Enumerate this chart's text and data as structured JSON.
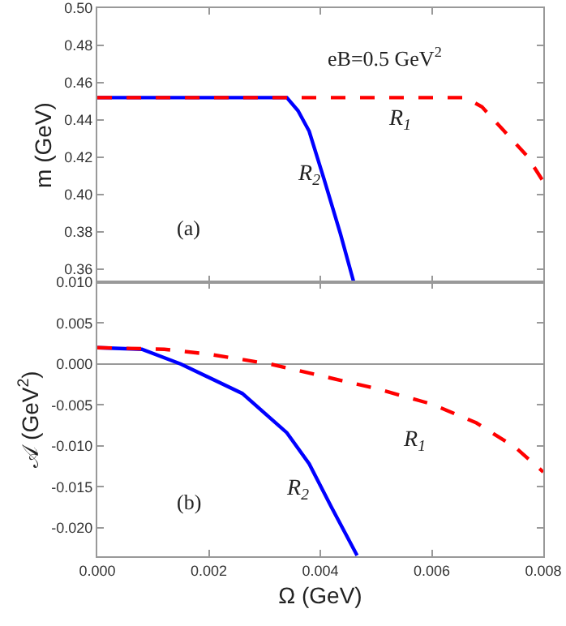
{
  "chart_data": [
    {
      "type": "line",
      "ylabel": "m (GeV)",
      "xlim": [
        0,
        0.008
      ],
      "ylim": [
        0.353,
        0.5
      ],
      "tick_labels": "y",
      "xticks": [
        {
          "value": 0,
          "label": null
        },
        {
          "value": 0.002,
          "label": null
        },
        {
          "value": 0.004,
          "label": null
        },
        {
          "value": 0.006,
          "label": null
        },
        {
          "value": 0.008,
          "label": null
        }
      ],
      "yticks": [
        0.36,
        0.38,
        {
          "value": 0.4,
          "label": "0.40"
        },
        0.42,
        0.44,
        0.46,
        0.48,
        {
          "value": 0.5,
          "label": "0.50"
        }
      ],
      "series": [
        {
          "name": "R$_{2}$",
          "color": "#0000ff",
          "line_style": "solid",
          "x": [
            0,
            0.0034,
            0.0036,
            0.0038,
            0.00407,
            0.00436,
            0.0046
          ],
          "values": [
            0.452,
            0.452,
            0.445,
            0.434,
            0.408,
            0.379,
            0.353
          ]
        },
        {
          "name": "R$_{1}$",
          "color": "#ff0000",
          "line_style": "dashed",
          "x": [
            0,
            0.0066,
            0.0069,
            0.0073,
            0.0077,
            0.008
          ],
          "values": [
            0.452,
            0.452,
            0.447,
            0.434,
            0.421,
            0.407
          ]
        }
      ],
      "annotations": [
        "eB=0.5 GeV$^{2}$",
        "(a)"
      ]
    },
    {
      "type": "line",
      "xlabel": "Ω (GeV)",
      "ylabel": "𝒜 (GeV$^{2}$)",
      "xlim": [
        0,
        0.008
      ],
      "ylim": [
        -0.0235,
        0.01
      ],
      "xticks": [
        {
          "value": 0,
          "label": "0.000"
        },
        {
          "value": 0.002,
          "label": "0.002"
        },
        {
          "value": 0.004,
          "label": "0.004"
        },
        {
          "value": 0.006,
          "label": "0.006"
        },
        {
          "value": 0.008,
          "label": "0.008"
        }
      ],
      "yticks": [
        {
          "value": 0.01,
          "label": "0.010"
        },
        {
          "value": 0.005,
          "label": "0.005"
        },
        {
          "value": 0,
          "label": "0.000"
        },
        {
          "value": -0.005,
          "label": "-0.005"
        },
        {
          "value": -0.01,
          "label": "-0.010"
        },
        {
          "value": -0.015,
          "label": "-0.015"
        },
        {
          "value": -0.02,
          "label": "-0.020"
        }
      ],
      "ref_lines": [
        {
          "axis": "y",
          "value": 0,
          "color": "#999999"
        }
      ],
      "series": [
        {
          "name": "R$_{2}$",
          "color": "#0000ff",
          "line_style": "solid",
          "x": [
            0,
            0.0008,
            0.0015,
            0.0026,
            0.0034,
            0.0038,
            0.0042,
            0.00466
          ],
          "values": [
            0.002,
            0.0018,
            0,
            -0.0036,
            -0.0084,
            -0.0122,
            -0.0175,
            -0.0234
          ]
        },
        {
          "name": "R$_{1}$",
          "color": "#ff0000",
          "line_style": "dashed",
          "x": [
            0,
            0.0012,
            0.002,
            0.0031,
            0.005,
            0.006,
            0.0068,
            0.0075,
            0.008
          ],
          "values": [
            0.002,
            0.0018,
            0.0012,
            0,
            -0.003,
            -0.0049,
            -0.0072,
            -0.0102,
            -0.0132
          ]
        }
      ],
      "annotations": [
        "(b)"
      ]
    }
  ]
}
